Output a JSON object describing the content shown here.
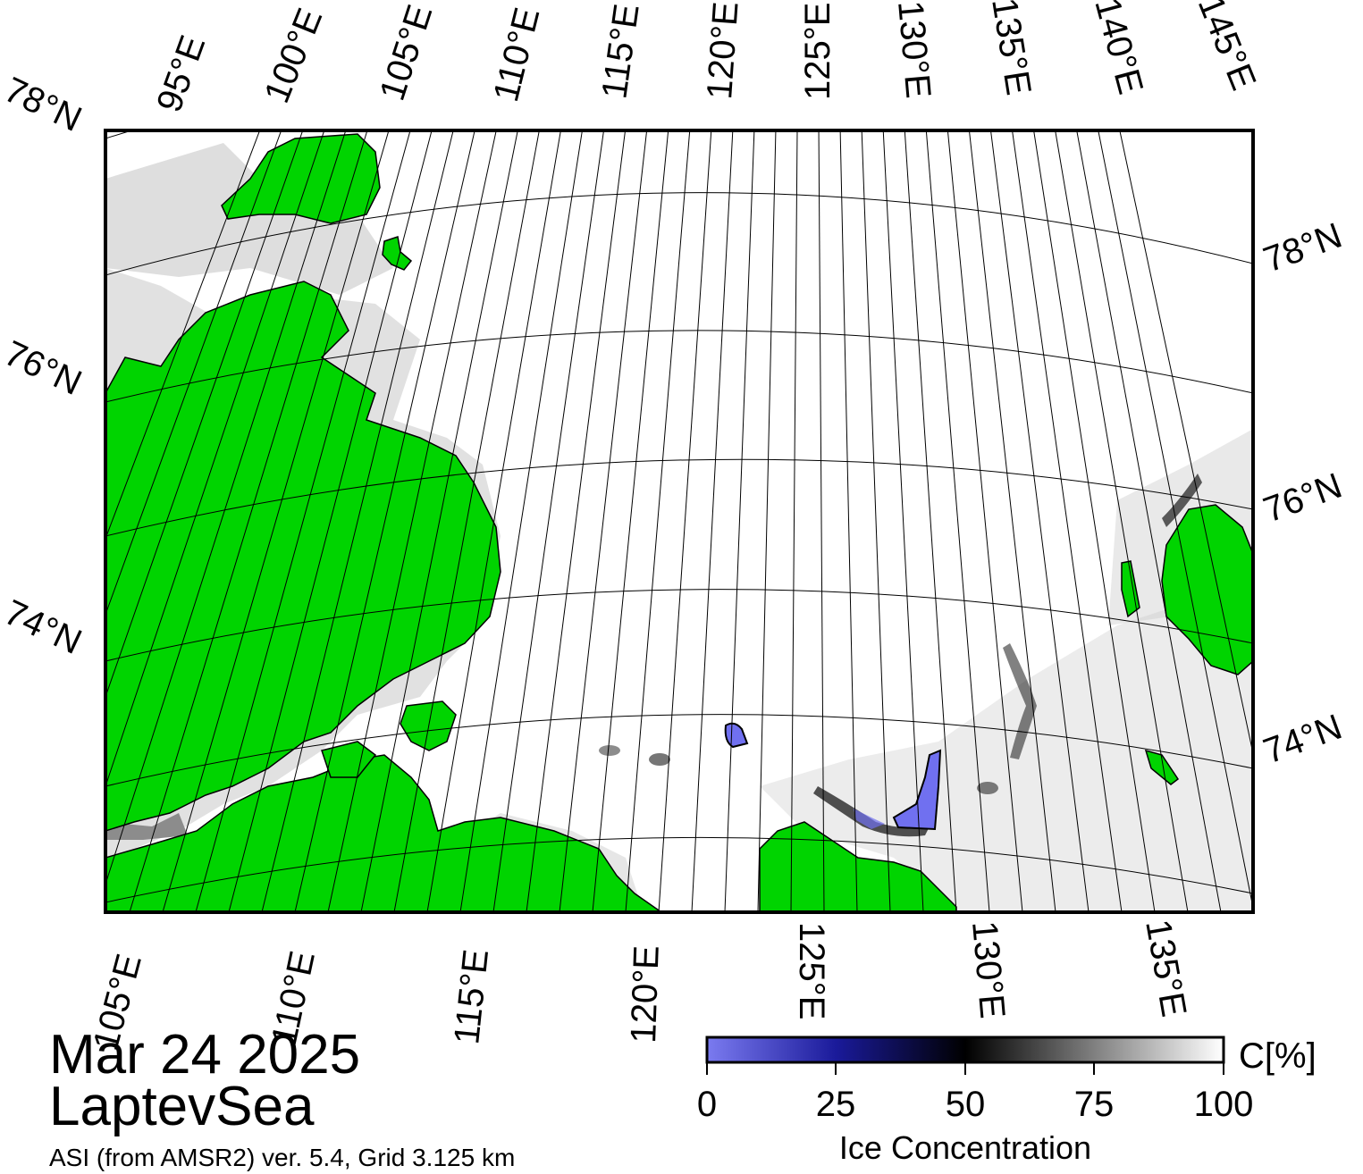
{
  "title": {
    "date": "Mar 24 2025",
    "region": "LaptevSea",
    "product": "ASI (from AMSR2) ver. 5.4,  Grid 3.125 km"
  },
  "map": {
    "top_lon_labels": [
      "95°E",
      "100°E",
      "105°E",
      "110°E",
      "115°E",
      "120°E",
      "125°E",
      "130°E",
      "135°E",
      "140°E",
      "145°E"
    ],
    "bottom_lon_labels": [
      "105°E",
      "110°E",
      "115°E",
      "120°E",
      "125°E",
      "130°E",
      "135°E"
    ],
    "left_lat_labels": [
      "78°N",
      "76°N",
      "74°N"
    ],
    "right_lat_labels": [
      "78°N",
      "76°N",
      "74°N"
    ],
    "colors": {
      "land": "#00d400",
      "land_outline": "#000000",
      "grid": "#000000",
      "coast_gray": "#8c8c8c",
      "ice_high": "#ffffff",
      "ice_mid": "#c8c8c8",
      "ice_low": "#1a1a1a",
      "open_water": "#7070f0"
    }
  },
  "colorbar": {
    "ticks": [
      "0",
      "25",
      "50",
      "75",
      "100"
    ],
    "unit": "C[%]",
    "label": "Ice Concentration",
    "gradient": [
      "#7b7bf0",
      "#1a1a9a",
      "#000000",
      "#808080",
      "#ffffff"
    ]
  }
}
